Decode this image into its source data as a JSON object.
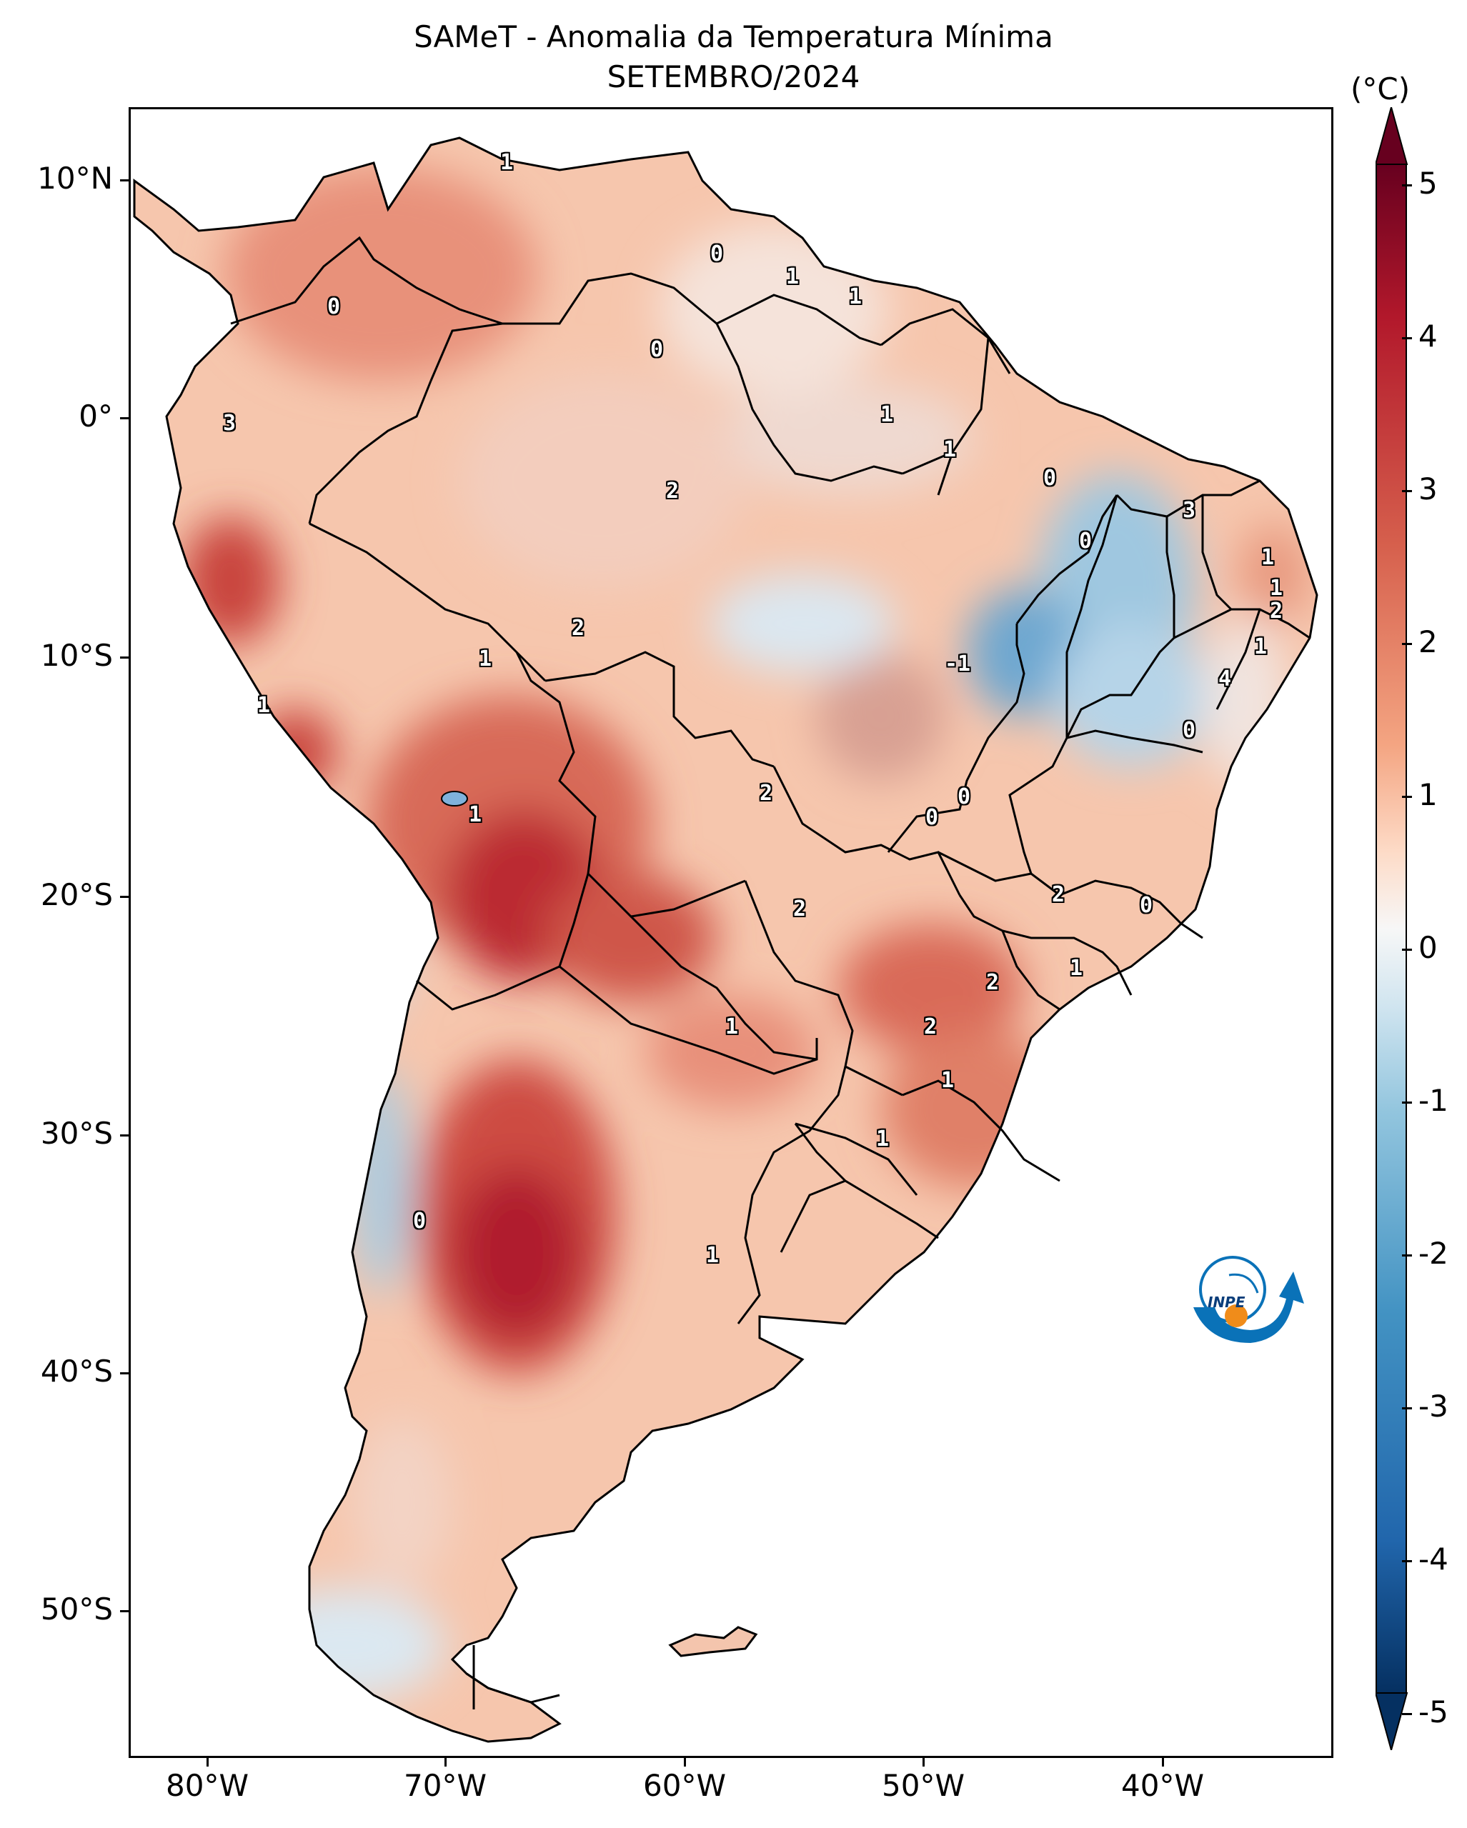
{
  "title": {
    "line1": "SAMeT - Anomalia da Temperatura Mínima",
    "line2": "SETEMBRO/2024"
  },
  "axes": {
    "latitude_labels": [
      "10°N",
      "0°",
      "10°S",
      "20°S",
      "30°S",
      "40°S",
      "50°S"
    ],
    "longitude_labels": [
      "80°W",
      "70°W",
      "60°W",
      "50°W",
      "40°W"
    ]
  },
  "colorbar": {
    "unit": "(°C)",
    "tick_labels": [
      "5",
      "4",
      "3",
      "2",
      "1",
      "0",
      "-1",
      "-2",
      "-3",
      "-4",
      "-5"
    ],
    "range": [
      -5,
      5
    ],
    "cmap": "RdBu_r",
    "colors": {
      "max": "#67001f",
      "high": "#b2182b",
      "warm": "#d6604d",
      "mild": "#f4a582",
      "light_warm": "#fddbc7",
      "neutral": "#f7f7f7",
      "light_cool": "#d1e5f0",
      "cool": "#92c5de",
      "cold": "#4393c3",
      "colder": "#2166ac",
      "min": "#053061"
    }
  },
  "contour_labels": [
    "1",
    "0",
    "1",
    "1",
    "0",
    "0",
    "1",
    "3",
    "1",
    "2",
    "0",
    "3",
    "0",
    "1",
    "1",
    "2",
    "2",
    "1",
    "-1",
    "1",
    "4",
    "1",
    "0",
    "0",
    "0",
    "2",
    "1",
    "2",
    "2",
    "0",
    "2",
    "1",
    "2",
    "1",
    "1",
    "0",
    "1",
    "1"
  ],
  "logo": {
    "text": "INPE"
  }
}
